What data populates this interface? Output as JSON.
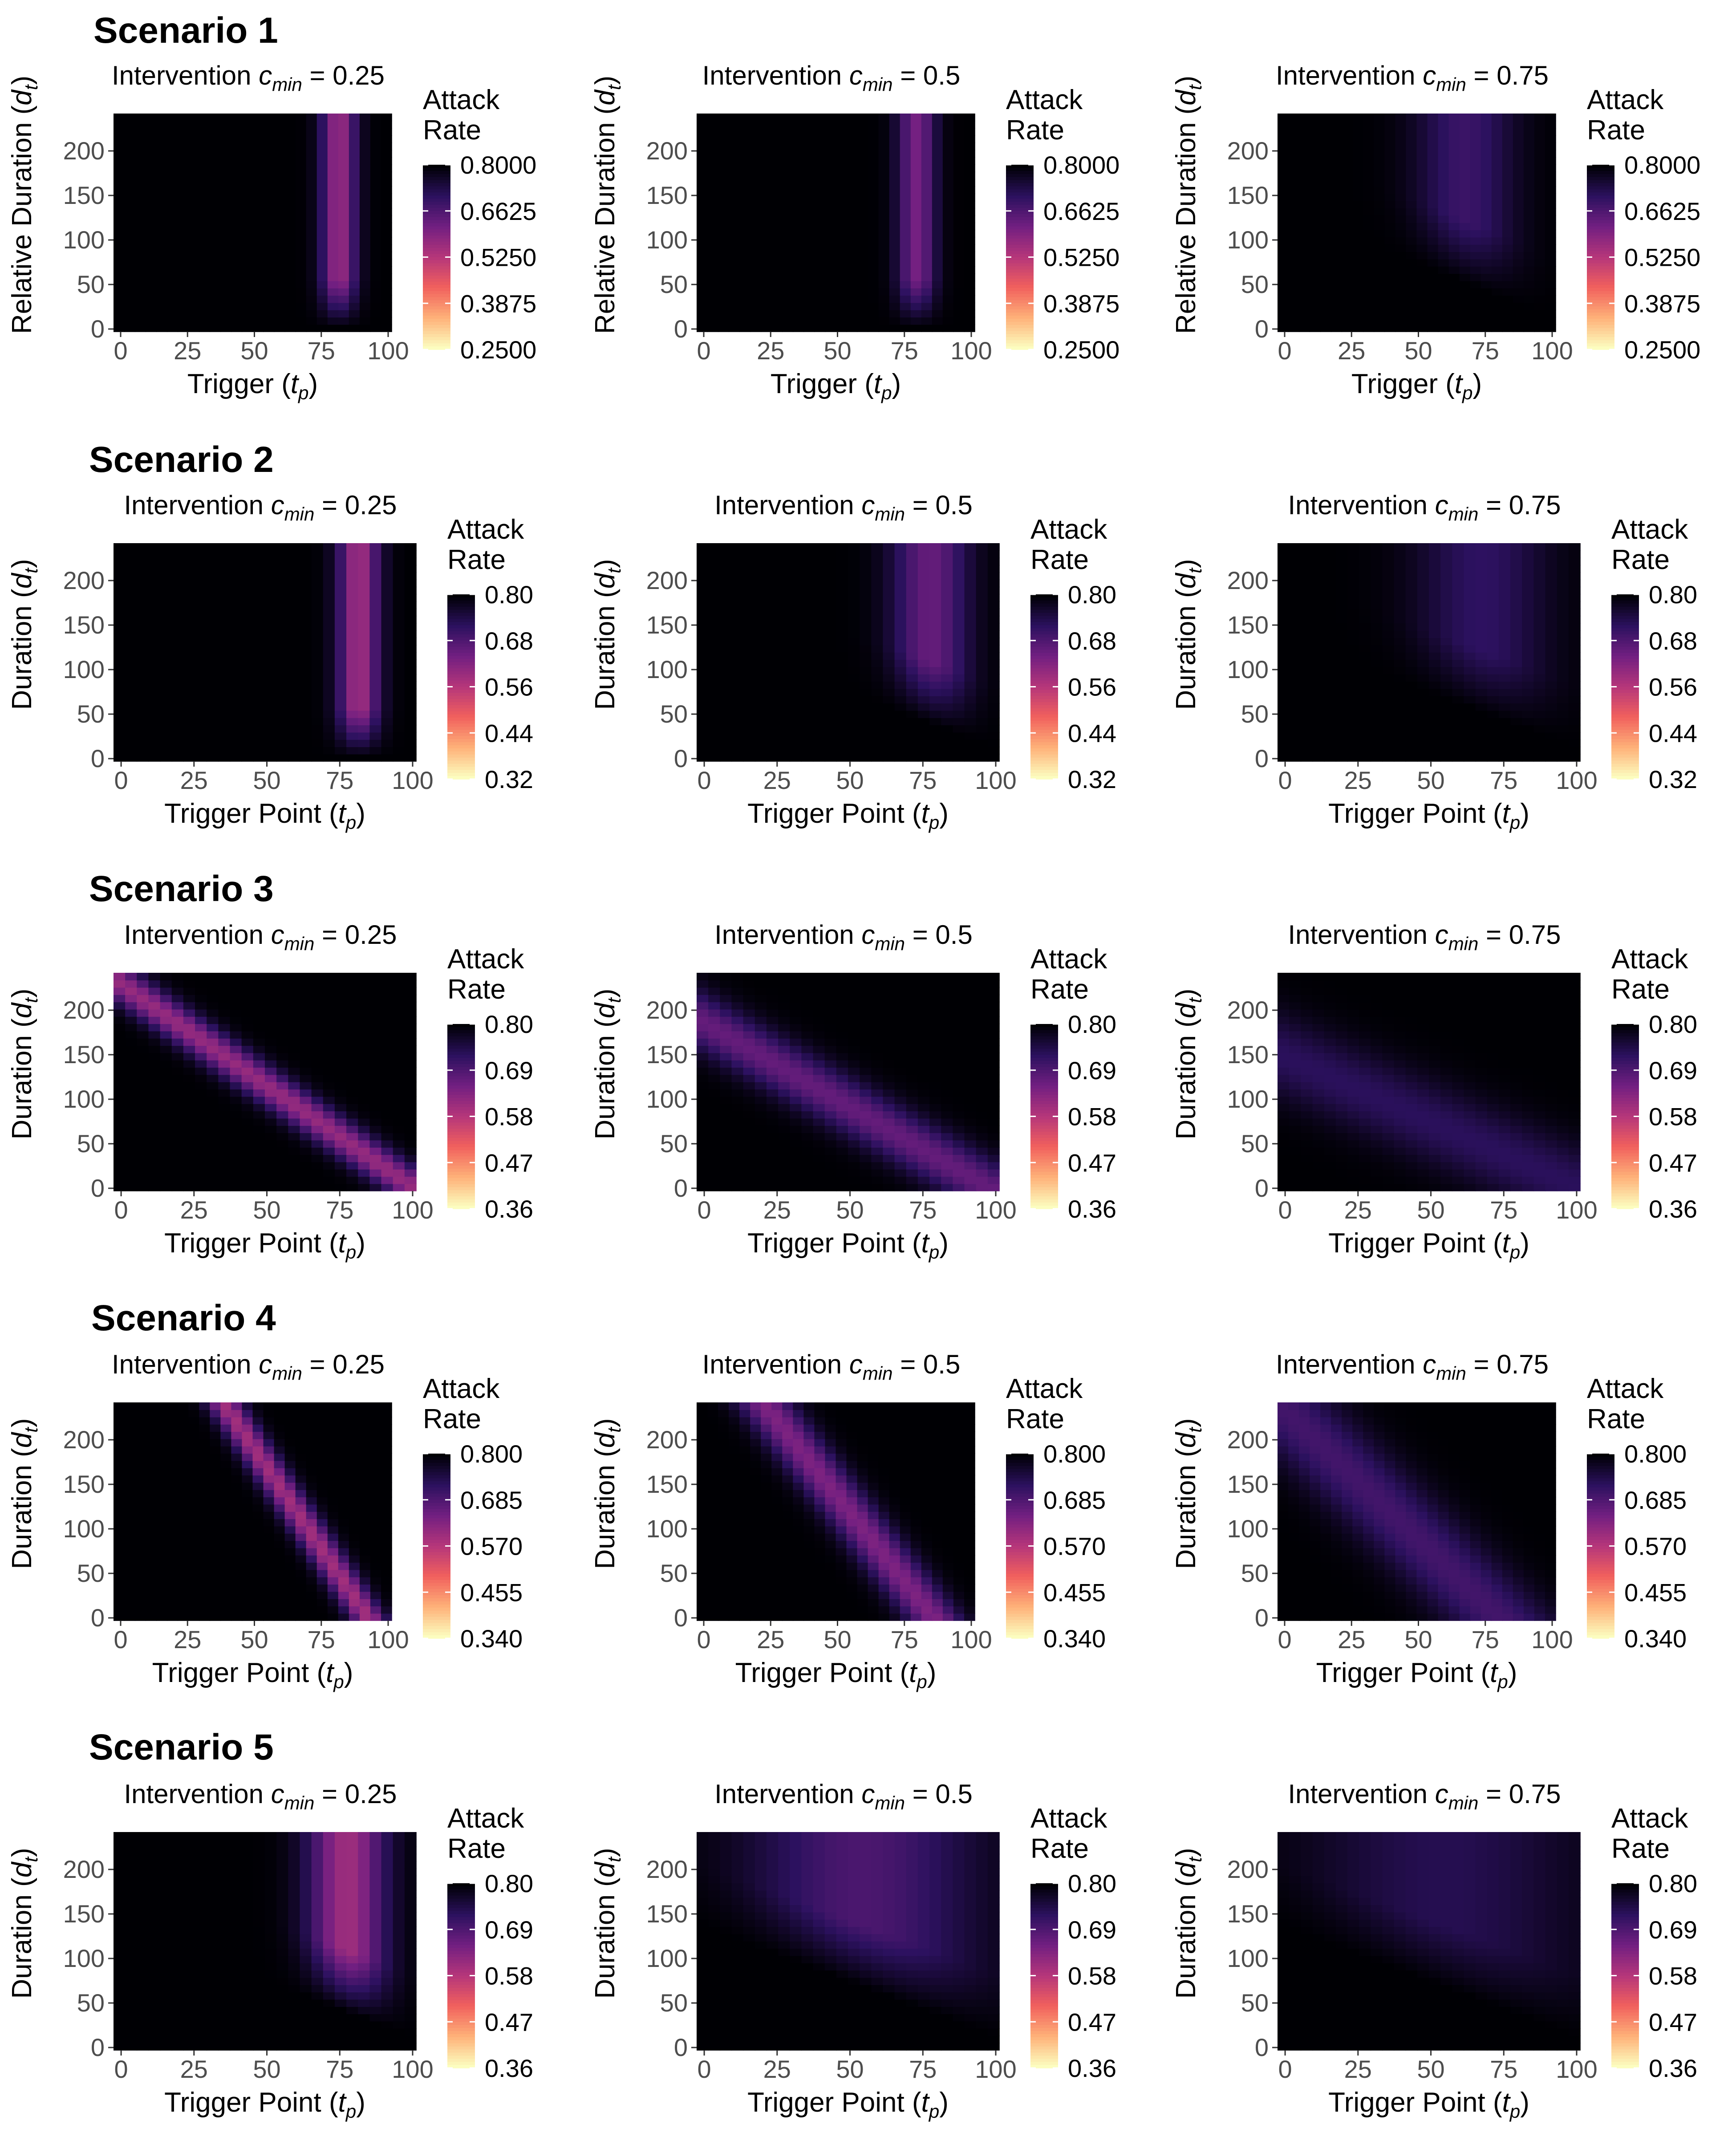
{
  "scenarios": [
    {
      "title": "Scenario 1"
    },
    {
      "title": "Scenario 2"
    },
    {
      "title": "Scenario 3"
    },
    {
      "title": "Scenario 4"
    },
    {
      "title": "Scenario 5"
    }
  ],
  "colors": {
    "scale": [
      "#fcfdbf",
      "#feb078",
      "#f1605d",
      "#b5367a",
      "#721f81",
      "#2c115f",
      "#000004"
    ],
    "dark_cell": "#140e36"
  },
  "chart_data": [
    {
      "type": "heatmap",
      "scenario": 1,
      "pattern": "band",
      "title_prefix": "Intervention ",
      "cmin_symbol": "c",
      "cmin_sub": "min",
      "cmin_value": " = 0.25",
      "xlabel": "Trigger",
      "ylabel": "Relative Duration",
      "x_ticks": [
        "0",
        "25",
        "50",
        "75",
        "100"
      ],
      "y_ticks": [
        "0",
        "50",
        "100",
        "150",
        "200"
      ],
      "xlim": [
        0,
        100
      ],
      "ylim": [
        0,
        245
      ],
      "legend_title": [
        "Attack",
        "Rate"
      ],
      "legend_ticks": [
        "0.8000",
        "0.6625",
        "0.5250",
        "0.3875",
        "0.2500"
      ],
      "legend_range": [
        0.25,
        0.8
      ],
      "center_x": 82,
      "width_x": 6.5,
      "depth": 0.42
    },
    {
      "type": "heatmap",
      "scenario": 1,
      "pattern": "band",
      "title_prefix": "Intervention ",
      "cmin_symbol": "c",
      "cmin_sub": "min",
      "cmin_value": " = 0.5",
      "xlabel": "Trigger",
      "ylabel": "Relative Duration",
      "x_ticks": [
        "0",
        "25",
        "50",
        "75",
        "100"
      ],
      "y_ticks": [
        "0",
        "50",
        "100",
        "150",
        "200"
      ],
      "xlim": [
        0,
        100
      ],
      "ylim": [
        0,
        245
      ],
      "legend_title": [
        "Attack",
        "Rate"
      ],
      "legend_ticks": [
        "0.8000",
        "0.6625",
        "0.5250",
        "0.3875",
        "0.2500"
      ],
      "legend_range": [
        0.25,
        0.8
      ],
      "center_x": 80,
      "width_x": 7,
      "depth": 0.34
    },
    {
      "type": "heatmap",
      "scenario": 1,
      "pattern": "wedge",
      "title_prefix": "Intervention ",
      "cmin_symbol": "c",
      "cmin_sub": "min",
      "cmin_value": " = 0.75",
      "xlabel": "Trigger",
      "ylabel": "Relative Duration",
      "x_ticks": [
        "0",
        "25",
        "50",
        "75",
        "100"
      ],
      "y_ticks": [
        "0",
        "50",
        "100",
        "150",
        "200"
      ],
      "xlim": [
        0,
        100
      ],
      "ylim": [
        0,
        245
      ],
      "legend_title": [
        "Attack",
        "Rate"
      ],
      "legend_ticks": [
        "0.8000",
        "0.6625",
        "0.5250",
        "0.3875",
        "0.2500"
      ],
      "legend_range": [
        0.25,
        0.8
      ],
      "center_x": 68,
      "width_x": 18,
      "depth": 0.2
    },
    {
      "type": "heatmap",
      "scenario": 2,
      "pattern": "band",
      "title_prefix": "Intervention ",
      "cmin_symbol": "c",
      "cmin_sub": "min",
      "cmin_value": " = 0.25",
      "xlabel": "Trigger Point",
      "ylabel": "Duration",
      "x_ticks": [
        "0",
        "25",
        "50",
        "75",
        "100"
      ],
      "y_ticks": [
        "0",
        "50",
        "100",
        "150",
        "200"
      ],
      "xlim": [
        0,
        100
      ],
      "ylim": [
        0,
        245
      ],
      "legend_title": [
        "Attack",
        "Rate"
      ],
      "legend_ticks": [
        "0.80",
        "0.68",
        "0.56",
        "0.44",
        "0.32"
      ],
      "legend_range": [
        0.32,
        0.8
      ],
      "center_x": 82,
      "width_x": 7,
      "depth": 0.44
    },
    {
      "type": "heatmap",
      "scenario": 2,
      "pattern": "wedge",
      "title_prefix": "Intervention ",
      "cmin_symbol": "c",
      "cmin_sub": "min",
      "cmin_value": " = 0.5",
      "xlabel": "Trigger Point",
      "ylabel": "Duration",
      "x_ticks": [
        "0",
        "25",
        "50",
        "75",
        "100"
      ],
      "y_ticks": [
        "0",
        "50",
        "100",
        "150",
        "200"
      ],
      "xlim": [
        0,
        100
      ],
      "ylim": [
        0,
        245
      ],
      "legend_title": [
        "Attack",
        "Rate"
      ],
      "legend_ticks": [
        "0.80",
        "0.68",
        "0.56",
        "0.44",
        "0.32"
      ],
      "legend_range": [
        0.32,
        0.8
      ],
      "center_x": 78,
      "width_x": 13,
      "depth": 0.3
    },
    {
      "type": "heatmap",
      "scenario": 2,
      "pattern": "wedge",
      "title_prefix": "Intervention ",
      "cmin_symbol": "c",
      "cmin_sub": "min",
      "cmin_value": " = 0.75",
      "xlabel": "Trigger Point",
      "ylabel": "Duration",
      "x_ticks": [
        "0",
        "25",
        "50",
        "75",
        "100"
      ],
      "y_ticks": [
        "0",
        "50",
        "100",
        "150",
        "200"
      ],
      "xlim": [
        0,
        100
      ],
      "ylim": [
        0,
        245
      ],
      "legend_title": [
        "Attack",
        "Rate"
      ],
      "legend_ticks": [
        "0.80",
        "0.68",
        "0.56",
        "0.44",
        "0.32"
      ],
      "legend_range": [
        0.32,
        0.8
      ],
      "center_x": 68,
      "width_x": 22,
      "depth": 0.17
    },
    {
      "type": "heatmap",
      "scenario": 3,
      "pattern": "diagonal",
      "title_prefix": "Intervention ",
      "cmin_symbol": "c",
      "cmin_sub": "min",
      "cmin_value": " = 0.25",
      "xlabel": "Trigger Point",
      "ylabel": "Duration",
      "x_ticks": [
        "0",
        "25",
        "50",
        "75",
        "100"
      ],
      "y_ticks": [
        "0",
        "50",
        "100",
        "150",
        "200"
      ],
      "xlim": [
        0,
        100
      ],
      "ylim": [
        0,
        245
      ],
      "legend_title": [
        "Attack",
        "Rate"
      ],
      "legend_ticks": [
        "0.80",
        "0.69",
        "0.58",
        "0.47",
        "0.36"
      ],
      "legend_range": [
        0.36,
        0.8
      ],
      "d0": 240,
      "slope": 2.35,
      "band": 24,
      "depth": 0.42
    },
    {
      "type": "heatmap",
      "scenario": 3,
      "pattern": "diagonal",
      "title_prefix": "Intervention ",
      "cmin_symbol": "c",
      "cmin_sub": "min",
      "cmin_value": " = 0.5",
      "xlabel": "Trigger Point",
      "ylabel": "Duration",
      "x_ticks": [
        "0",
        "25",
        "50",
        "75",
        "100"
      ],
      "y_ticks": [
        "0",
        "50",
        "100",
        "150",
        "200"
      ],
      "xlim": [
        0,
        100
      ],
      "ylim": [
        0,
        245
      ],
      "legend_title": [
        "Attack",
        "Rate"
      ],
      "legend_ticks": [
        "0.80",
        "0.69",
        "0.58",
        "0.47",
        "0.36"
      ],
      "legend_range": [
        0.36,
        0.8
      ],
      "d0": 195,
      "slope": 1.95,
      "band": 34,
      "depth": 0.3
    },
    {
      "type": "heatmap",
      "scenario": 3,
      "pattern": "diagonal",
      "title_prefix": "Intervention ",
      "cmin_symbol": "c",
      "cmin_sub": "min",
      "cmin_value": " = 0.75",
      "xlabel": "Trigger Point",
      "ylabel": "Duration",
      "x_ticks": [
        "0",
        "25",
        "50",
        "75",
        "100"
      ],
      "y_ticks": [
        "0",
        "50",
        "100",
        "150",
        "200"
      ],
      "xlim": [
        0,
        100
      ],
      "ylim": [
        0,
        245
      ],
      "legend_title": [
        "Attack",
        "Rate"
      ],
      "legend_ticks": [
        "0.80",
        "0.69",
        "0.58",
        "0.47",
        "0.36"
      ],
      "legend_range": [
        0.36,
        0.8
      ],
      "d0": 155,
      "slope": 1.5,
      "band": 48,
      "depth": 0.16
    },
    {
      "type": "heatmap",
      "scenario": 4,
      "pattern": "diagonal",
      "title_prefix": "Intervention ",
      "cmin_symbol": "c",
      "cmin_sub": "min",
      "cmin_value": " = 0.25",
      "xlabel": "Trigger Point",
      "ylabel": "Duration",
      "x_ticks": [
        "0",
        "25",
        "50",
        "75",
        "100"
      ],
      "y_ticks": [
        "0",
        "50",
        "100",
        "150",
        "200"
      ],
      "xlim": [
        0,
        100
      ],
      "ylim": [
        0,
        245
      ],
      "legend_title": [
        "Attack",
        "Rate"
      ],
      "legend_ticks": [
        "0.800",
        "0.685",
        "0.570",
        "0.455",
        "0.340"
      ],
      "legend_range": [
        0.34,
        0.8
      ],
      "d0": 430,
      "slope": 4.6,
      "band": 30,
      "depth": 0.45
    },
    {
      "type": "heatmap",
      "scenario": 4,
      "pattern": "diagonal",
      "title_prefix": "Intervention ",
      "cmin_symbol": "c",
      "cmin_sub": "min",
      "cmin_value": " = 0.5",
      "xlabel": "Trigger Point",
      "ylabel": "Duration",
      "x_ticks": [
        "0",
        "25",
        "50",
        "75",
        "100"
      ],
      "y_ticks": [
        "0",
        "50",
        "100",
        "150",
        "200"
      ],
      "xlim": [
        0,
        100
      ],
      "ylim": [
        0,
        245
      ],
      "legend_title": [
        "Attack",
        "Rate"
      ],
      "legend_ticks": [
        "0.800",
        "0.685",
        "0.570",
        "0.455",
        "0.340"
      ],
      "legend_range": [
        0.34,
        0.8
      ],
      "d0": 340,
      "slope": 3.9,
      "band": 40,
      "depth": 0.36
    },
    {
      "type": "heatmap",
      "scenario": 4,
      "pattern": "diagonal",
      "title_prefix": "Intervention ",
      "cmin_symbol": "c",
      "cmin_sub": "min",
      "cmin_value": " = 0.75",
      "xlabel": "Trigger Point",
      "ylabel": "Duration",
      "x_ticks": [
        "0",
        "25",
        "50",
        "75",
        "100"
      ],
      "y_ticks": [
        "0",
        "50",
        "100",
        "150",
        "200"
      ],
      "xlim": [
        0,
        100
      ],
      "ylim": [
        0,
        245
      ],
      "legend_title": [
        "Attack",
        "Rate"
      ],
      "legend_ticks": [
        "0.800",
        "0.685",
        "0.570",
        "0.455",
        "0.340"
      ],
      "legend_range": [
        0.34,
        0.8
      ],
      "d0": 245,
      "slope": 3.0,
      "band": 60,
      "depth": 0.22
    },
    {
      "type": "heatmap",
      "scenario": 5,
      "pattern": "wedge",
      "title_prefix": "Intervention ",
      "cmin_symbol": "c",
      "cmin_sub": "min",
      "cmin_value": " = 0.25",
      "xlabel": "Trigger Point",
      "ylabel": "Duration",
      "x_ticks": [
        "0",
        "25",
        "50",
        "75",
        "100"
      ],
      "y_ticks": [
        "0",
        "50",
        "100",
        "150",
        "200"
      ],
      "xlim": [
        0,
        100
      ],
      "ylim": [
        0,
        245
      ],
      "legend_title": [
        "Attack",
        "Rate"
      ],
      "legend_ticks": [
        "0.80",
        "0.69",
        "0.58",
        "0.47",
        "0.36"
      ],
      "legend_range": [
        0.36,
        0.8
      ],
      "center_x": 78,
      "width_x": 13,
      "depth": 0.44
    },
    {
      "type": "heatmap",
      "scenario": 5,
      "pattern": "wedge",
      "title_prefix": "Intervention ",
      "cmin_symbol": "c",
      "cmin_sub": "min",
      "cmin_value": " = 0.5",
      "xlabel": "Trigger Point",
      "ylabel": "Duration",
      "x_ticks": [
        "0",
        "25",
        "50",
        "75",
        "100"
      ],
      "y_ticks": [
        "0",
        "50",
        "100",
        "150",
        "200"
      ],
      "xlim": [
        0,
        100
      ],
      "ylim": [
        0,
        245
      ],
      "legend_title": [
        "Attack",
        "Rate"
      ],
      "legend_ticks": [
        "0.80",
        "0.69",
        "0.58",
        "0.47",
        "0.36"
      ],
      "legend_range": [
        0.36,
        0.8
      ],
      "center_x": 55,
      "width_x": 38,
      "depth": 0.24
    },
    {
      "type": "heatmap",
      "scenario": 5,
      "pattern": "wedge",
      "title_prefix": "Intervention ",
      "cmin_symbol": "c",
      "cmin_sub": "min",
      "cmin_value": " = 0.75",
      "xlabel": "Trigger Point",
      "ylabel": "Duration",
      "x_ticks": [
        "0",
        "25",
        "50",
        "75",
        "100"
      ],
      "y_ticks": [
        "0",
        "50",
        "100",
        "150",
        "200"
      ],
      "xlim": [
        0,
        100
      ],
      "ylim": [
        0,
        245
      ],
      "legend_title": [
        "Attack",
        "Rate"
      ],
      "legend_ticks": [
        "0.80",
        "0.69",
        "0.58",
        "0.47",
        "0.36"
      ],
      "legend_range": [
        0.36,
        0.8
      ],
      "center_x": 55,
      "width_x": 45,
      "depth": 0.14
    }
  ]
}
